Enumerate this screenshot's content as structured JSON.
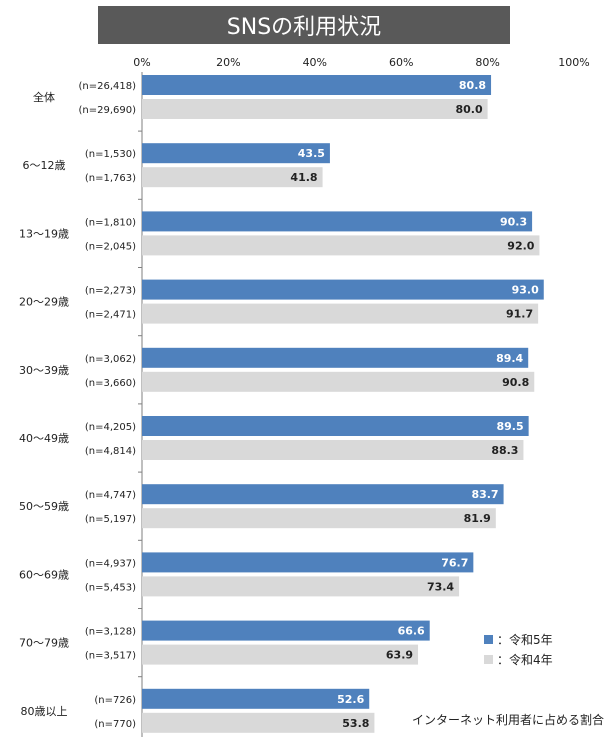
{
  "chart_data": {
    "type": "bar",
    "orientation": "horizontal",
    "title": "SNSの利用状況",
    "categories": [
      "全体",
      "6～12歳",
      "13～19歳",
      "20～29歳",
      "30～39歳",
      "40～49歳",
      "50～59歳",
      "60～69歳",
      "70～79歳",
      "80歳以上"
    ],
    "xlim": [
      0,
      100
    ],
    "xticks": [
      "0%",
      "20%",
      "40%",
      "60%",
      "80%",
      "100%"
    ],
    "series": [
      {
        "name": "令和5年",
        "legend_label": "：令和5年",
        "color": "#4f81bd",
        "values": [
          80.8,
          43.5,
          90.3,
          93.0,
          89.4,
          89.5,
          83.7,
          76.7,
          66.6,
          52.6
        ],
        "labels": [
          "80.8",
          "43.5",
          "90.3",
          "93.0",
          "89.4",
          "89.5",
          "83.7",
          "76.7",
          "66.6",
          "52.6"
        ],
        "n": [
          "(n=26,418)",
          "(n=1,530)",
          "(n=1,810)",
          "(n=2,273)",
          "(n=3,062)",
          "(n=4,205)",
          "(n=4,747)",
          "(n=4,937)",
          "(n=3,128)",
          "(n=726)"
        ]
      },
      {
        "name": "令和4年",
        "legend_label": "：令和4年",
        "color": "#d9d9d9",
        "values": [
          80.0,
          41.8,
          92.0,
          91.7,
          90.8,
          88.3,
          81.9,
          73.4,
          63.9,
          53.8
        ],
        "labels": [
          "80.0",
          "41.8",
          "92.0",
          "91.7",
          "90.8",
          "88.3",
          "81.9",
          "73.4",
          "63.9",
          "53.8"
        ],
        "n": [
          "(n=29,690)",
          "(n=1,763)",
          "(n=2,045)",
          "(n=2,471)",
          "(n=3,660)",
          "(n=4,814)",
          "(n=5,197)",
          "(n=5,453)",
          "(n=3,517)",
          "(n=770)"
        ]
      }
    ],
    "note": "インターネット利用者に占める割合"
  }
}
